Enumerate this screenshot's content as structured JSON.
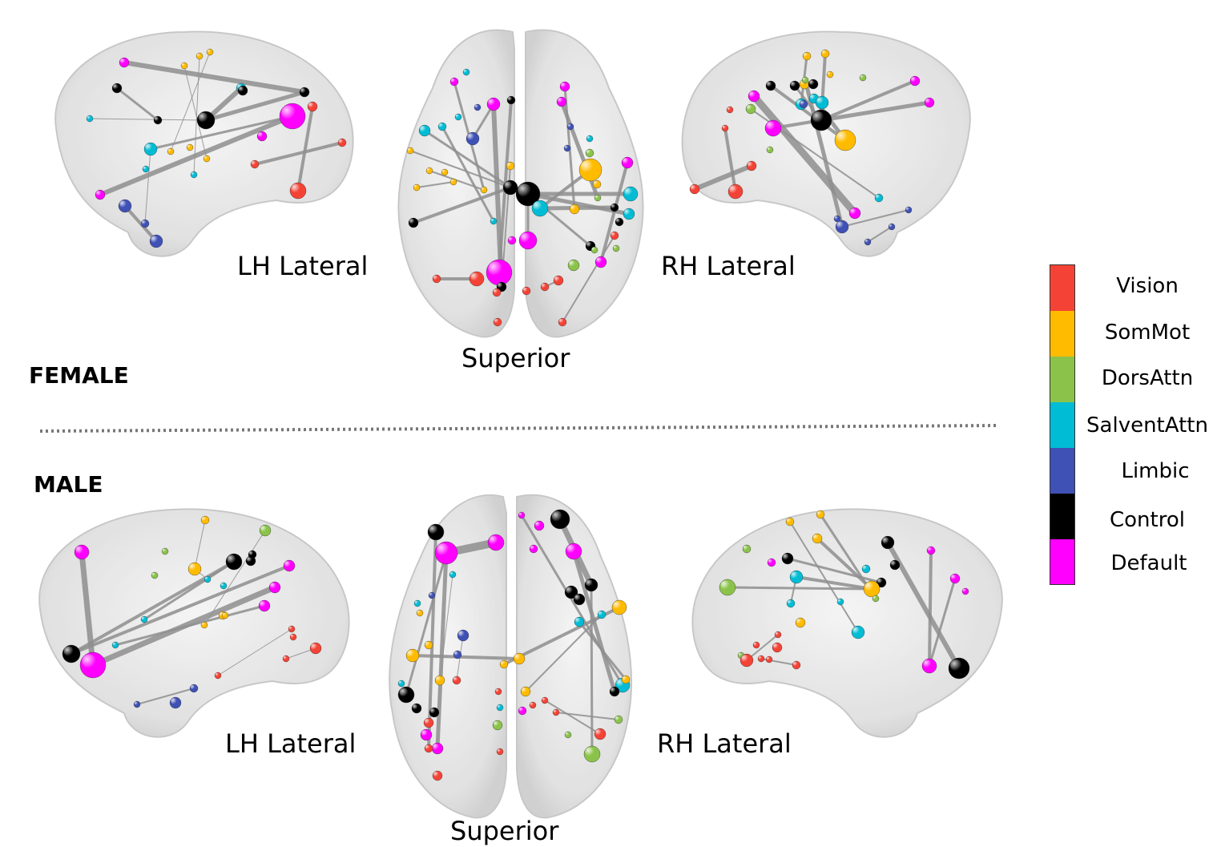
{
  "sections": [
    {
      "id": "female",
      "label": "FEMALE",
      "views": {
        "lh": "LH Lateral",
        "sup": "Superior",
        "rh": "RH Lateral"
      }
    },
    {
      "id": "male",
      "label": "MALE",
      "views": {
        "lh": "LH Lateral",
        "sup": "Superior",
        "rh": "RH Lateral"
      }
    }
  ],
  "legend": [
    {
      "name": "Vision",
      "color": "#f44336"
    },
    {
      "name": "SomMot",
      "color": "#ffbb00"
    },
    {
      "name": "DorsAttn",
      "color": "#8bc34a"
    },
    {
      "name": "SalventAttn",
      "color": "#00bcd4"
    },
    {
      "name": "Limbic",
      "color": "#3f51b5"
    },
    {
      "name": "Control",
      "color": "#000000"
    },
    {
      "name": "Default",
      "color": "#ff00ff"
    }
  ],
  "icons": {
    "brain": "brain-icon",
    "divider": "dotted-divider"
  }
}
